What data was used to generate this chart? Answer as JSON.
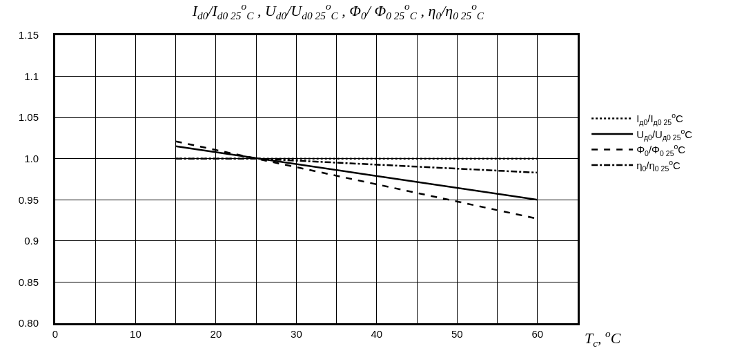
{
  "chart_data": {
    "type": "line",
    "title": "I$_{d0}$/I$_{d0 25}$$^{o}$$_{C}$ , U$_{d0}$/U$_{d0 25}$$^{o}$$_{C}$ , Φ$_{0}$/ Φ$_{0 25}$$^{o}$$_{C}$ , η$_{0}$/η$_{0 25}$$^{o}$$_{C}$",
    "xlabel": "T$_{c}$, $^{o}$C",
    "xlim": [
      0,
      65
    ],
    "xticks": [
      0,
      {
        "value": 5,
        "label": null
      },
      10,
      {
        "value": 15,
        "label": null
      },
      20,
      {
        "value": 25,
        "label": null
      },
      30,
      {
        "value": 35,
        "label": null
      },
      40,
      {
        "value": 45,
        "label": null
      },
      50,
      {
        "value": 55,
        "label": null
      },
      60,
      {
        "value": 65,
        "label": null
      }
    ],
    "ylim": [
      0.8,
      1.15
    ],
    "yticks": [
      {
        "value": 0.8,
        "label": "0.80"
      },
      0.85,
      0.9,
      0.95,
      {
        "value": 1.0,
        "label": "1.0"
      },
      1.05,
      1.1,
      1.15
    ],
    "grid": true,
    "legend": "right",
    "marker": "none",
    "series": [
      {
        "name": "I$_{д0}$/I$_{д0 25}$$^{o}$C",
        "color": "#000000",
        "line_style": "dotted",
        "x": [
          15,
          60
        ],
        "values": [
          1.0,
          1.0
        ]
      },
      {
        "name": "U$_{д0}$/U$_{д0 25}$$^{o}$C",
        "color": "#000000",
        "line_style": "solid",
        "x": [
          15,
          60
        ],
        "values": [
          1.015,
          0.95
        ]
      },
      {
        "name": "Φ$_{0}$/Φ$_{0 25}$$^{o}$C",
        "color": "#000000",
        "line_style": "dashed",
        "x": [
          15,
          60
        ],
        "values": [
          1.021,
          0.927
        ]
      },
      {
        "name": "η$_{0}$/η$_{0 25}$$^{o}$C",
        "color": "#000000",
        "line_style": "dashdot",
        "x": [
          15,
          25,
          60
        ],
        "values": [
          1.0,
          1.0,
          0.983
        ]
      }
    ]
  }
}
